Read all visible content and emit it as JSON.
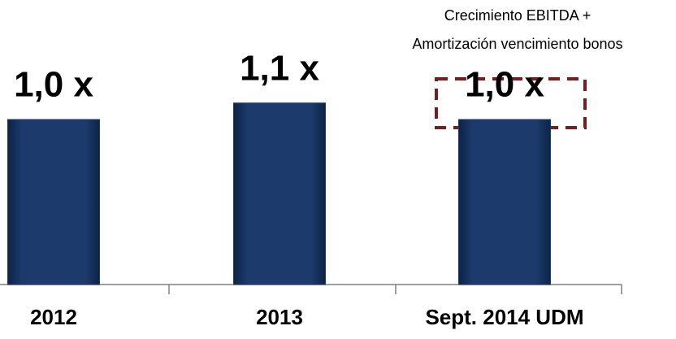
{
  "chart_data": {
    "type": "bar",
    "categories": [
      "2012",
      "2013",
      "Sept. 2014 UDM"
    ],
    "values": [
      1.0,
      1.1,
      1.0
    ],
    "value_labels": [
      "1,0 x",
      "1,1 x",
      "1,0 x"
    ],
    "color": "#1c3a6b",
    "annotations": [
      "Crecimiento EBITDA +",
      "Amortización vencimiento bonos"
    ]
  }
}
